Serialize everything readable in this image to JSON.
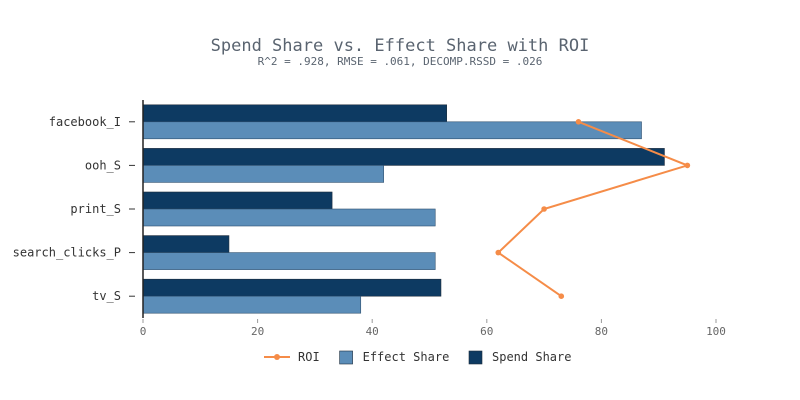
{
  "chart_data": {
    "type": "bar",
    "orientation": "horizontal",
    "title": "Spend Share vs. Effect Share with ROI",
    "subtitle": "R^2 = .928, RMSE = .061, DECOMP.RSSD = .026",
    "categories": [
      "facebook_I",
      "ooh_S",
      "print_S",
      "search_clicks_P",
      "tv_S"
    ],
    "series": [
      {
        "name": "Spend Share",
        "kind": "bar",
        "color": "#0d3a62",
        "values": [
          53,
          91,
          33,
          15,
          52
        ]
      },
      {
        "name": "Effect Share",
        "kind": "bar",
        "color": "#5b8db8",
        "values": [
          87,
          42,
          51,
          51,
          38
        ]
      },
      {
        "name": "ROI",
        "kind": "line",
        "color": "#f58c48",
        "values": [
          76,
          95,
          70,
          62,
          73
        ]
      }
    ],
    "xlim": [
      0,
      100
    ],
    "xticks": [
      "0",
      "20",
      "40",
      "60",
      "80",
      "100"
    ],
    "grid": false,
    "legend_placement": "bottom",
    "legend": [
      "ROI",
      "Effect Share",
      "Spend Share"
    ]
  }
}
